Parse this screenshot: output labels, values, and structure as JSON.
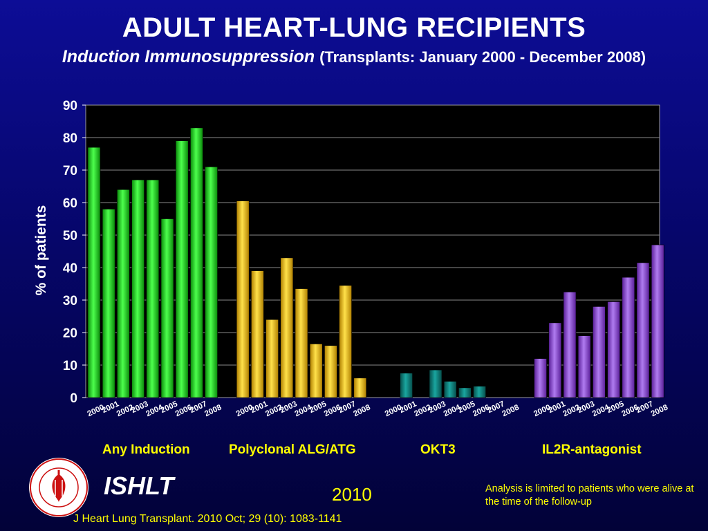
{
  "header": {
    "title": "ADULT HEART-LUNG RECIPIENTS",
    "subtitle_main": "Induction Immunosuppression",
    "subtitle_range": "(Transplants: January 2000  - December 2008)"
  },
  "footer": {
    "org": "ISHLT",
    "year": "2010",
    "note": "Analysis is limited to patients who were alive at the time of the follow-up",
    "citation": "J Heart Lung Transplant. 2010 Oct; 29 (10): 1083-1141",
    "logo_text": "INTERNATIONAL SOCIETY FOR HEART & LUNG TRANSPLANTATION"
  },
  "chart_data": {
    "type": "bar",
    "title": "",
    "xlabel": "",
    "ylabel": "% of patients",
    "ylim": [
      0,
      90
    ],
    "yticks": [
      0,
      10,
      20,
      30,
      40,
      50,
      60,
      70,
      80,
      90
    ],
    "grid": true,
    "categories": [
      "2000",
      "2001",
      "2002",
      "2003",
      "2004",
      "2005",
      "2006",
      "2007",
      "2008"
    ],
    "series": [
      {
        "name": "Any Induction",
        "color": "#22dd22",
        "values": [
          77,
          58,
          64,
          67,
          67,
          55,
          79,
          83,
          71
        ]
      },
      {
        "name": "Polyclonal ALG/ATG",
        "color": "#f5c400",
        "values": [
          60.5,
          39,
          24,
          43,
          33.5,
          16.5,
          16,
          34.5,
          6
        ]
      },
      {
        "name": "OKT3",
        "color": "#0f7f7a",
        "values": [
          0,
          7.5,
          0,
          8.5,
          5,
          3,
          3.5,
          0,
          0
        ]
      },
      {
        "name": "IL2R-antagonist",
        "color": "#8a3fd0",
        "values": [
          12,
          23,
          32.5,
          19,
          28,
          29.5,
          37,
          41.5,
          47
        ]
      }
    ]
  }
}
